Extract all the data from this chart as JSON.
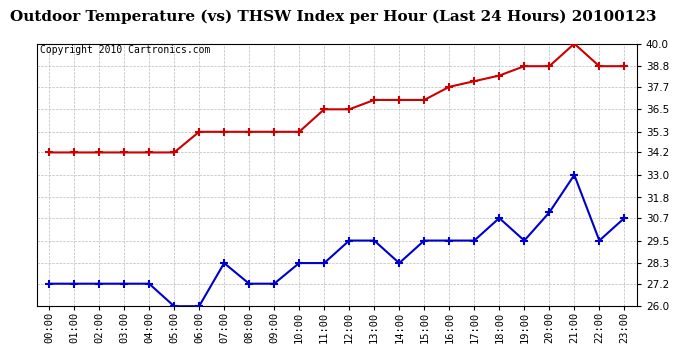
{
  "title": "Outdoor Temperature (vs) THSW Index per Hour (Last 24 Hours) 20100123",
  "copyright": "Copyright 2010 Cartronics.com",
  "hours": [
    "00:00",
    "01:00",
    "02:00",
    "03:00",
    "04:00",
    "05:00",
    "06:00",
    "07:00",
    "08:00",
    "09:00",
    "10:00",
    "11:00",
    "12:00",
    "13:00",
    "14:00",
    "15:00",
    "16:00",
    "17:00",
    "18:00",
    "19:00",
    "20:00",
    "21:00",
    "22:00",
    "23:00"
  ],
  "temp": [
    34.2,
    34.2,
    34.2,
    34.2,
    34.2,
    34.2,
    35.3,
    35.3,
    35.3,
    35.3,
    35.3,
    36.5,
    36.5,
    37.0,
    37.0,
    37.0,
    37.7,
    38.0,
    38.3,
    38.8,
    38.8,
    40.0,
    38.8,
    38.8
  ],
  "thsw": [
    27.2,
    27.2,
    27.2,
    27.2,
    27.2,
    26.0,
    26.0,
    28.3,
    27.2,
    27.2,
    28.3,
    28.3,
    29.5,
    29.5,
    28.3,
    29.5,
    29.5,
    29.5,
    30.7,
    29.5,
    31.0,
    33.0,
    29.5,
    30.7
  ],
  "temp_color": "#cc0000",
  "thsw_color": "#0000cc",
  "ylim_min": 26.0,
  "ylim_max": 40.0,
  "yticks": [
    26.0,
    27.2,
    28.3,
    29.5,
    30.7,
    31.8,
    33.0,
    34.2,
    35.3,
    36.5,
    37.7,
    38.8,
    40.0
  ],
  "background_color": "#ffffff",
  "grid_color": "#bbbbbb",
  "title_fontsize": 11,
  "copyright_fontsize": 7,
  "tick_fontsize": 7.5,
  "marker_style": "+"
}
